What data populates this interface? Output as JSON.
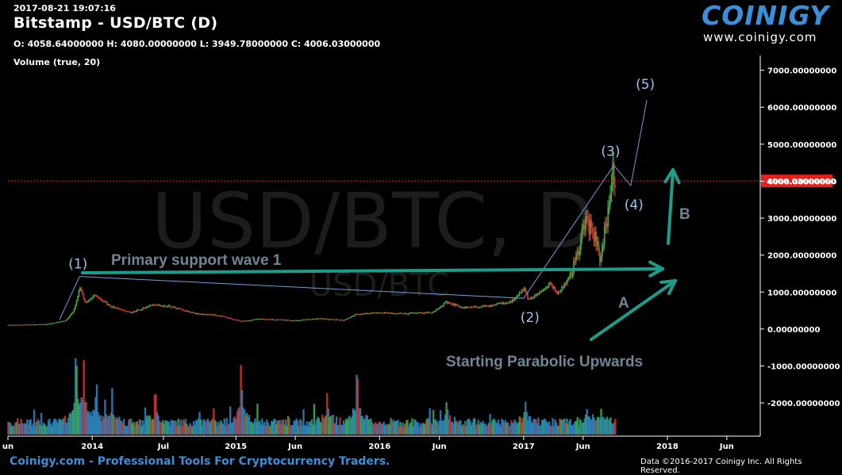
{
  "header": {
    "timestamp": "2017-08-21 19:07:16",
    "title": "Bitstamp - USD/BTC (D)",
    "ohlc": "O: 4058.64000000 H: 4080.00000000 L: 3949.78000000 C: 4006.03000000",
    "volume_label": "Volume (true, 20)"
  },
  "brand": {
    "logo": "COINIGY",
    "url": "www.coinigy.com"
  },
  "watermark": {
    "main": "USD/BTC, D",
    "sub": "USD/BTC"
  },
  "footer": {
    "tagline": "Coinigy.com - Professional Tools For Cryptocurrency Traders.",
    "copyright": "Data ©2016-2017 Coinigy Inc. All Rights Reserved."
  },
  "colors": {
    "background": "#000000",
    "wave_line": "#6f9fd6",
    "annotation_arrow": "#1e9c8a",
    "price_line": "#e8201c",
    "price_badge": "#e8201c",
    "volume_fill": "#2e86c1",
    "candle_up": "#3fae49",
    "candle_down": "#d9342b"
  },
  "chart_data": {
    "type": "candlestick",
    "title": "Bitstamp - USD/BTC (D)",
    "y_ticks": [
      "7000.00000000",
      "6000.00000000",
      "5000.00000000",
      "4000.00000000",
      "3000.00000000",
      "2000.00000000",
      "1000.00000000",
      "0.00000000",
      "-1000.00000000",
      "-2000.00000000"
    ],
    "y_tick_values": [
      7000,
      6000,
      5000,
      4000,
      3000,
      2000,
      1000,
      0,
      -1000,
      -2000
    ],
    "ylim": [
      -2900,
      7400
    ],
    "x_ticks": [
      "un",
      "2014",
      "Jul",
      "2015",
      "Jun",
      "2016",
      "Jun",
      "2017",
      "Jun",
      "2018",
      "Jun"
    ],
    "x_tick_dates": [
      "2013-06-01",
      "2014-01-01",
      "2014-07-01",
      "2015-01-01",
      "2015-06-01",
      "2016-01-01",
      "2016-06-01",
      "2017-01-01",
      "2017-06-01",
      "2018-01-01",
      "2018-06-01"
    ],
    "x_range": [
      "2013-06-01",
      "2018-08-25"
    ],
    "current_price": {
      "label": "4006.03000000",
      "value": 4006.03
    },
    "price_path": [
      [
        "2013-06-01",
        110
      ],
      [
        "2013-09-01",
        125
      ],
      [
        "2013-10-25",
        220
      ],
      [
        "2013-11-15",
        500
      ],
      [
        "2013-11-30",
        1120
      ],
      [
        "2013-12-15",
        700
      ],
      [
        "2014-01-10",
        920
      ],
      [
        "2014-02-15",
        620
      ],
      [
        "2014-04-10",
        440
      ],
      [
        "2014-06-01",
        640
      ],
      [
        "2014-07-15",
        620
      ],
      [
        "2014-09-20",
        420
      ],
      [
        "2014-11-15",
        370
      ],
      [
        "2015-01-15",
        210
      ],
      [
        "2015-03-01",
        270
      ],
      [
        "2015-06-01",
        230
      ],
      [
        "2015-08-01",
        280
      ],
      [
        "2015-10-01",
        240
      ],
      [
        "2015-11-05",
        400
      ],
      [
        "2015-12-20",
        440
      ],
      [
        "2016-03-01",
        420
      ],
      [
        "2016-05-15",
        450
      ],
      [
        "2016-06-18",
        720
      ],
      [
        "2016-08-01",
        580
      ],
      [
        "2016-10-01",
        620
      ],
      [
        "2016-12-01",
        750
      ],
      [
        "2017-01-04",
        1100
      ],
      [
        "2017-01-12",
        790
      ],
      [
        "2017-02-20",
        1050
      ],
      [
        "2017-03-10",
        1250
      ],
      [
        "2017-03-25",
        950
      ],
      [
        "2017-04-20",
        1250
      ],
      [
        "2017-05-10",
        1750
      ],
      [
        "2017-05-25",
        2400
      ],
      [
        "2017-06-10",
        2900
      ],
      [
        "2017-07-01",
        2450
      ],
      [
        "2017-07-16",
        1850
      ],
      [
        "2017-07-25",
        2700
      ],
      [
        "2017-08-05",
        3200
      ],
      [
        "2017-08-15",
        4300
      ],
      [
        "2017-08-21",
        4006
      ]
    ],
    "volume_spikes": [
      {
        "date": "2013-11-20",
        "level": 0.95
      },
      {
        "date": "2013-12-10",
        "level": 0.9
      },
      {
        "date": "2014-01-10",
        "level": 0.55
      },
      {
        "date": "2014-02-20",
        "level": 0.6
      },
      {
        "date": "2014-06-10",
        "level": 0.45
      },
      {
        "date": "2015-01-14",
        "level": 0.75
      },
      {
        "date": "2015-08-20",
        "level": 0.5
      },
      {
        "date": "2015-11-05",
        "level": 0.8
      },
      {
        "date": "2016-06-20",
        "level": 0.35
      },
      {
        "date": "2017-01-05",
        "level": 0.4
      },
      {
        "date": "2017-06-12",
        "level": 0.3
      },
      {
        "date": "2017-07-16",
        "level": 0.3
      }
    ]
  },
  "annotations": {
    "wave_points": [
      {
        "label": "(1)",
        "date": "2013-11-30",
        "price": 1420
      },
      {
        "label": "(2)",
        "date": "2017-01-01",
        "price": 830
      },
      {
        "label": "(3)",
        "date": "2017-08-18",
        "price": 4430
      },
      {
        "label": "(4)",
        "date": "2017-09-30",
        "price": 3880
      },
      {
        "label": "(5)",
        "date": "2017-11-10",
        "price": 6200
      }
    ],
    "wave_start": {
      "date": "2013-10-10",
      "price": 250
    },
    "primary_support_text": "Primary support wave 1",
    "arrow_a_label": "A",
    "arrow_b_label": "B",
    "parabolic_text": "Starting Parabolic Upwards"
  }
}
